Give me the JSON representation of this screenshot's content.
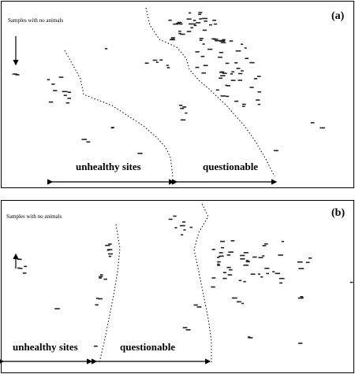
{
  "panels": [
    {
      "id": "a",
      "label": "(a)",
      "no_animals_label": "Samples with no animals",
      "zone_left_label": "unhealthy sites",
      "zone_right_label": "questionable"
    },
    {
      "id": "b",
      "label": "(b)",
      "no_animals_label": "Samples with no animals",
      "zone_left_label": "unhealthy sites",
      "zone_right_label": "questionable"
    }
  ]
}
